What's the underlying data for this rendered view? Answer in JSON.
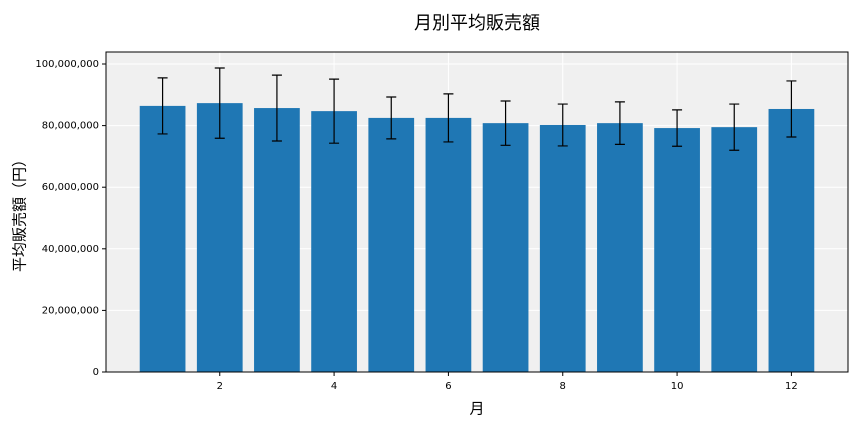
{
  "chart_data": {
    "type": "bar",
    "title": "月別平均販売額",
    "x_label": "月",
    "y_label": "平均販売額（円）",
    "x": [
      1,
      2,
      3,
      4,
      5,
      6,
      7,
      8,
      9,
      10,
      11,
      12
    ],
    "values": [
      86400000,
      87300000,
      85700000,
      84700000,
      82500000,
      82500000,
      80800000,
      80200000,
      80800000,
      79200000,
      79500000,
      85400000
    ],
    "errors": [
      9100000,
      11400000,
      10700000,
      10400000,
      6800000,
      7800000,
      7200000,
      6800000,
      6900000,
      5900000,
      7500000,
      9100000
    ],
    "color": "#1f77b4",
    "error_color": "#000000",
    "background": "#f0f0f0",
    "grid": true,
    "xlim": [
      0.01,
      12.99
    ],
    "xticks": [
      2,
      4,
      6,
      8,
      10,
      12
    ],
    "ylim": [
      0,
      103900000
    ],
    "yticks": [
      0,
      {
        "value": 20000000,
        "label": "20,000,000"
      },
      {
        "value": 40000000,
        "label": "40,000,000"
      },
      {
        "value": 60000000,
        "label": "60,000,000"
      },
      {
        "value": 80000000,
        "label": "80,000,000"
      },
      {
        "value": 100000000,
        "label": "100,000,000"
      }
    ]
  }
}
